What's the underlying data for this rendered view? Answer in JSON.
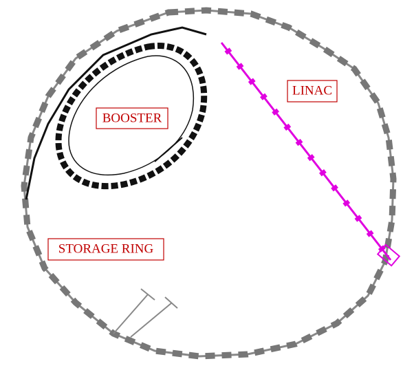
{
  "labels": {
    "booster": "BOOSTER",
    "linac": "LINAC",
    "storage_ring": "STORAGE RING"
  }
}
